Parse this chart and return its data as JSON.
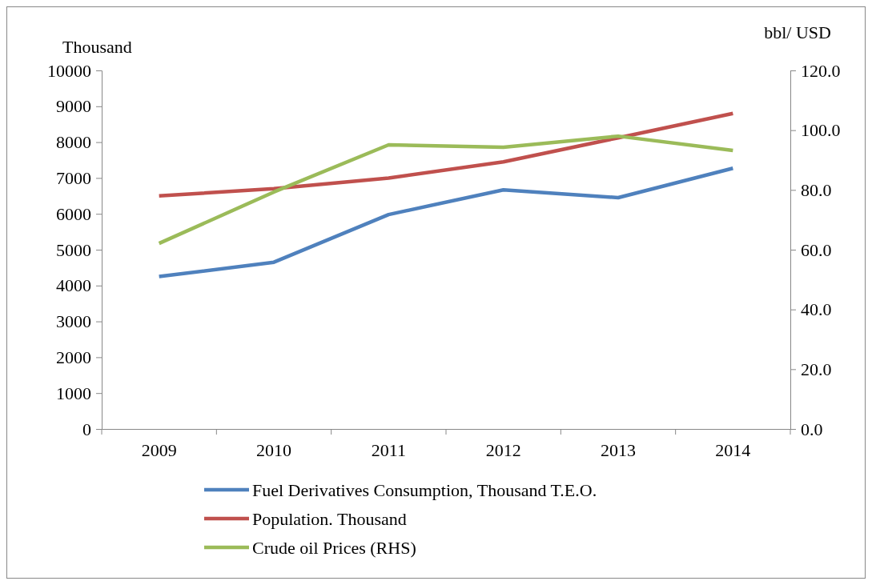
{
  "chart_data": {
    "type": "line",
    "ylabel": "Thousand",
    "y2label": "bbl/ USD",
    "categories": [
      "2009",
      "2010",
      "2011",
      "2012",
      "2013",
      "2014"
    ],
    "series": [
      {
        "name": "Fuel Derivatives Consumption, Thousand T.E.O.",
        "color": "#4f81bd",
        "values": [
          4250,
          4650,
          5980,
          6670,
          6450,
          7270
        ]
      },
      {
        "name": "Population. Thousand",
        "color": "#c0504d",
        "values": [
          6500,
          6700,
          7000,
          7450,
          8120,
          8800
        ]
      },
      {
        "name": "Crude oil Prices (RHS)",
        "color": "#9bbb59",
        "axis": "y2",
        "values": [
          62.1,
          79.3,
          95.1,
          94.3,
          98.0,
          93.2
        ]
      }
    ],
    "ylim": [
      0,
      10000
    ],
    "yticks": [
      0,
      1000,
      2000,
      3000,
      4000,
      5000,
      6000,
      7000,
      8000,
      9000,
      10000
    ],
    "y2lim": [
      0,
      120
    ],
    "y2ticks": [
      {
        "value": 0,
        "label": "0.0"
      },
      {
        "value": 20,
        "label": "20.0"
      },
      {
        "value": 40,
        "label": "40.0"
      },
      {
        "value": 60,
        "label": "60.0"
      },
      {
        "value": 80,
        "label": "80.0"
      },
      {
        "value": 100,
        "label": "100.0"
      },
      {
        "value": 120,
        "label": "120.0"
      }
    ],
    "grid": false,
    "legend": "bottom",
    "marker": "none",
    "line_style": "solid"
  }
}
